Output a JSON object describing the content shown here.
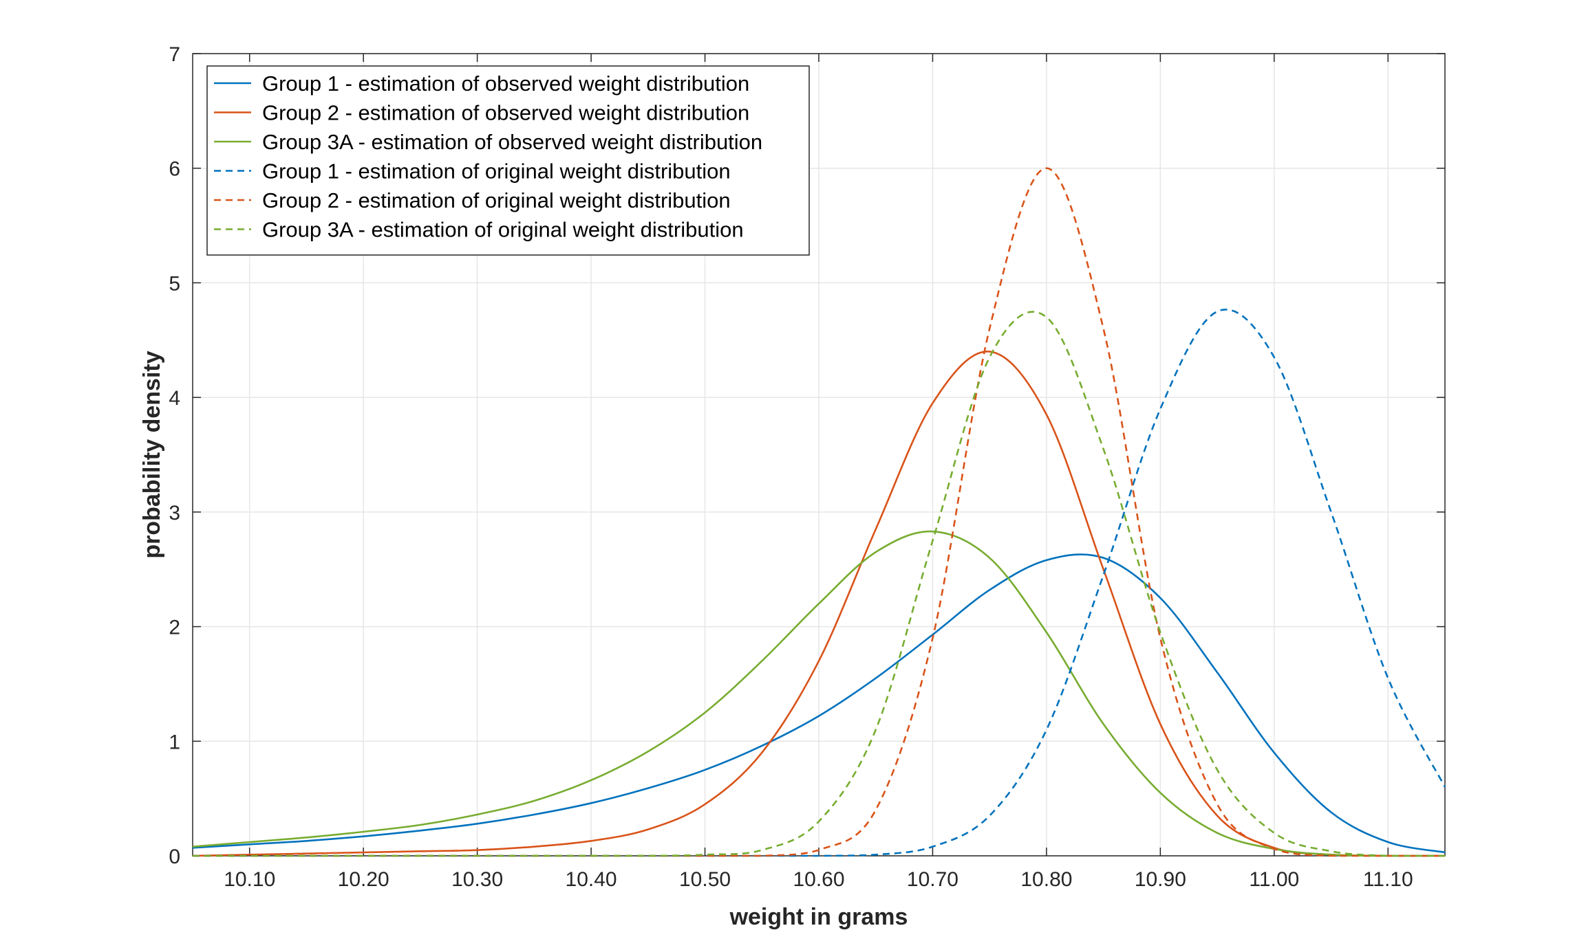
{
  "chart_data": {
    "type": "line",
    "title": "",
    "xlabel": "weight in grams",
    "ylabel": "probability density",
    "xlim": [
      10.05,
      11.15
    ],
    "ylim": [
      0,
      7
    ],
    "xticks": [
      10.1,
      10.2,
      10.3,
      10.4,
      10.5,
      10.6,
      10.7,
      10.8,
      10.9,
      11.0,
      11.1
    ],
    "xtick_labels": [
      "10.10",
      "10.20",
      "10.30",
      "10.40",
      "10.50",
      "10.60",
      "10.70",
      "10.80",
      "10.90",
      "11.00",
      "11.10"
    ],
    "yticks": [
      0,
      1,
      2,
      3,
      4,
      5,
      6,
      7
    ],
    "ytick_labels": [
      "0",
      "1",
      "2",
      "3",
      "4",
      "5",
      "6",
      "7"
    ],
    "grid": true,
    "legend_position": "top-left",
    "x": [
      10.05,
      10.1,
      10.15,
      10.2,
      10.25,
      10.3,
      10.35,
      10.4,
      10.45,
      10.5,
      10.55,
      10.6,
      10.65,
      10.7,
      10.75,
      10.8,
      10.85,
      10.9,
      10.95,
      11.0,
      11.05,
      11.1,
      11.15
    ],
    "series": [
      {
        "name": "Group 1 - estimation of observed weight distribution",
        "color": "#0072bd",
        "dash": "solid",
        "values": [
          0.07,
          0.1,
          0.13,
          0.17,
          0.22,
          0.28,
          0.36,
          0.46,
          0.59,
          0.75,
          0.96,
          1.22,
          1.55,
          1.93,
          2.32,
          2.58,
          2.6,
          2.25,
          1.6,
          0.9,
          0.38,
          0.12,
          0.03
        ]
      },
      {
        "name": "Group 2 - estimation of observed weight distribution",
        "color": "#d95319",
        "dash": "solid",
        "values": [
          0.0,
          0.01,
          0.02,
          0.03,
          0.04,
          0.05,
          0.08,
          0.13,
          0.23,
          0.45,
          0.9,
          1.7,
          2.85,
          3.95,
          4.4,
          3.85,
          2.5,
          1.15,
          0.35,
          0.07,
          0.01,
          0.0,
          0.0
        ]
      },
      {
        "name": "Group 3A - estimation of observed weight distribution",
        "color": "#77ac30",
        "dash": "solid",
        "values": [
          0.08,
          0.12,
          0.16,
          0.21,
          0.27,
          0.36,
          0.48,
          0.66,
          0.91,
          1.25,
          1.7,
          2.2,
          2.65,
          2.83,
          2.6,
          1.95,
          1.15,
          0.55,
          0.2,
          0.06,
          0.01,
          0.0,
          0.0
        ]
      },
      {
        "name": "Group 1 - estimation of original weight distribution",
        "color": "#0072bd",
        "dash": "dashed",
        "values": [
          0.0,
          0.0,
          0.0,
          0.0,
          0.0,
          0.0,
          0.0,
          0.0,
          0.0,
          0.0,
          0.0,
          0.0,
          0.01,
          0.08,
          0.35,
          1.1,
          2.45,
          3.9,
          4.75,
          4.35,
          3.0,
          1.55,
          0.6
        ]
      },
      {
        "name": "Group 2 - estimation of original weight distribution",
        "color": "#d95319",
        "dash": "dashed",
        "values": [
          0.0,
          0.0,
          0.0,
          0.0,
          0.0,
          0.0,
          0.0,
          0.0,
          0.0,
          0.0,
          0.0,
          0.05,
          0.4,
          1.9,
          4.6,
          6.0,
          4.6,
          1.9,
          0.45,
          0.06,
          0.0,
          0.0,
          0.0
        ]
      },
      {
        "name": "Group 3A - estimation of original weight distribution",
        "color": "#77ac30",
        "dash": "dashed",
        "values": [
          0.0,
          0.0,
          0.0,
          0.0,
          0.0,
          0.0,
          0.0,
          0.0,
          0.0,
          0.01,
          0.05,
          0.3,
          1.1,
          2.75,
          4.35,
          4.7,
          3.55,
          1.95,
          0.75,
          0.2,
          0.04,
          0.0,
          0.0
        ]
      }
    ]
  }
}
